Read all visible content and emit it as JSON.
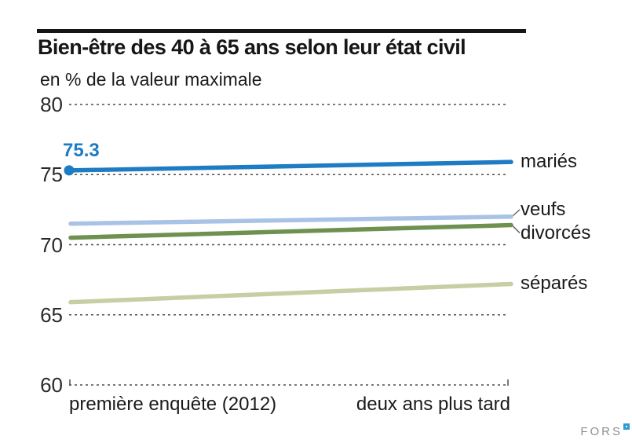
{
  "title": "Bien-être des 40 à 65 ans selon leur état civil",
  "subtitle": "en % de la valeur maximale",
  "logo": {
    "text": "FORS",
    "mark_color": "#2f99d3",
    "text_color": "#8e8e8e"
  },
  "chart_data": {
    "type": "line",
    "x": [
      "première enquête (2012)",
      "deux ans plus tard"
    ],
    "series": [
      {
        "name": "mariés",
        "values": [
          75.3,
          75.9
        ],
        "color": "#1d7cc4"
      },
      {
        "name": "veufs",
        "values": [
          71.5,
          72.0
        ],
        "color": "#a9c3e6"
      },
      {
        "name": "divorcés",
        "values": [
          70.5,
          71.4
        ],
        "color": "#6e9150"
      },
      {
        "name": "séparés",
        "values": [
          65.9,
          67.2
        ],
        "color": "#c6cfa3"
      }
    ],
    "point_label": {
      "series": "mariés",
      "x_index": 0,
      "text": "75.3"
    },
    "ylim": [
      60,
      80
    ],
    "yticks": [
      80,
      75,
      70,
      65,
      60
    ],
    "grid": "horizontal dashed",
    "grid_color": "#4d4d4d",
    "legend_position": "right of line ends"
  }
}
